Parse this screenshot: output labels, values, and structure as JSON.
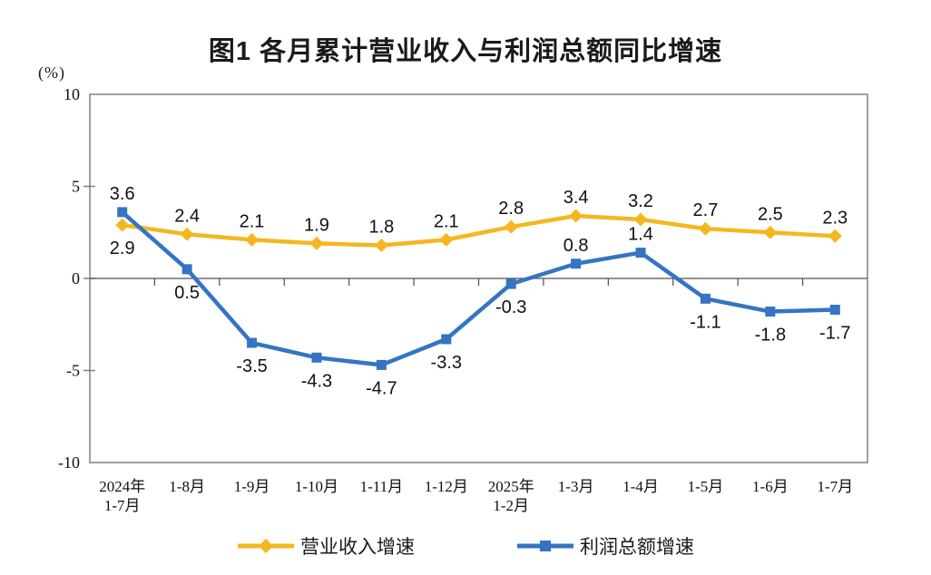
{
  "page": {
    "background": "#ffffff"
  },
  "chart_data": {
    "type": "line",
    "title": "图1 各月累计营业收入与利润总额同比增速",
    "unit_label": "(%)",
    "categories": [
      "2024年\n1-7月",
      "1-8月",
      "1-9月",
      "1-10月",
      "1-11月",
      "1-12月",
      "2025年\n1-2月",
      "1-3月",
      "1-4月",
      "1-5月",
      "1-6月",
      "1-7月"
    ],
    "series": [
      {
        "id": "revenue",
        "name": "营业收入增速",
        "color": "#F4B71F",
        "marker": "diamond",
        "values": [
          2.9,
          2.4,
          2.1,
          1.9,
          1.8,
          2.1,
          2.8,
          3.4,
          3.2,
          2.7,
          2.5,
          2.3
        ],
        "label_sides": [
          "below",
          "above",
          "above",
          "above",
          "above",
          "above",
          "above",
          "above",
          "above",
          "above",
          "above",
          "above"
        ]
      },
      {
        "id": "profit",
        "name": "利润总额增速",
        "color": "#3574C4",
        "marker": "square",
        "values": [
          3.6,
          0.5,
          -3.5,
          -4.3,
          -4.7,
          -3.3,
          -0.3,
          0.8,
          1.4,
          -1.1,
          -1.8,
          -1.7
        ],
        "label_sides": [
          "above",
          "below",
          "below",
          "below",
          "below",
          "below",
          "below",
          "above",
          "above",
          "below",
          "below",
          "below"
        ]
      }
    ],
    "ylim": [
      -10,
      10
    ],
    "yticks": [
      10,
      5,
      0,
      -5,
      -10
    ],
    "grid": false,
    "legend_position": "bottom",
    "axis_color": "#808080",
    "zero_line_color": "#4D4D4D",
    "text_color": "#111111"
  }
}
